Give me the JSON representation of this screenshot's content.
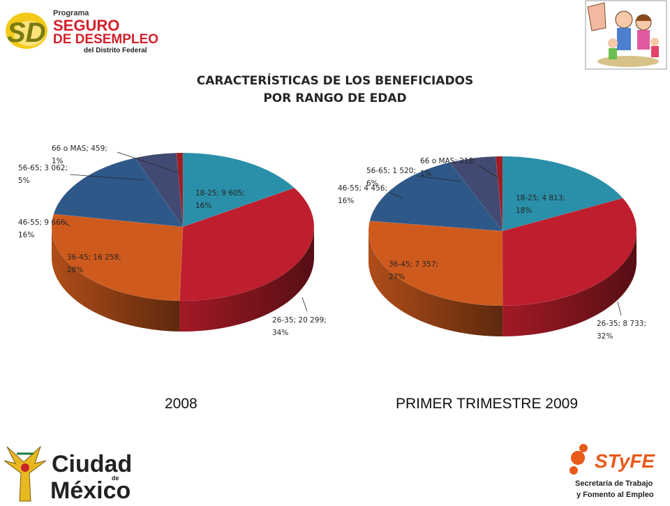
{
  "logos": {
    "program_small": "Programa",
    "program_line1": "SEGURO",
    "program_line2": "DE DESEMPLEO",
    "program_line3": "del Distrito Federal",
    "program_mark": "SD",
    "city_line1": "Ciudad",
    "city_de": "de",
    "city_line2": "México",
    "styfe_mark": "STyFE",
    "styfe_line1": "Secretaría de Trabajo",
    "styfe_line2": "y Fomento al Empleo"
  },
  "title_line1": "CARACTERÍSTICAS DE LOS BENEFICIADOS",
  "title_line2": "POR RANGO DE EDAD",
  "captions": {
    "left": "2008",
    "right": "PRIMER TRIMESTRE 2009"
  },
  "colors": {
    "18-25": "#2a8fa8",
    "26-35": "#be1e2d",
    "36-45": "#cf5a1d",
    "46-55": "#2d5888",
    "56-65": "#414a72",
    "66 o MAS": "#a11d22"
  },
  "chart_data": [
    {
      "type": "pie",
      "caption": "2008",
      "categories": [
        "18-25",
        "26-35",
        "36-45",
        "46-55",
        "56-65",
        "66 o MAS"
      ],
      "values": [
        9605,
        20299,
        16258,
        9666,
        3062,
        459
      ],
      "value_labels": [
        "9 605",
        "20 299",
        "16 258",
        "9 666",
        "3 062",
        "459"
      ],
      "percents": [
        "16%",
        "34%",
        "28%",
        "16%",
        "5%",
        "1%"
      ]
    },
    {
      "type": "pie",
      "caption": "PRIMER TRIMESTRE 2009",
      "categories": [
        "18-25",
        "26-35",
        "36-45",
        "46-55",
        "56-65",
        "66 o MAS"
      ],
      "values": [
        4813,
        8733,
        7357,
        4456,
        1520,
        218
      ],
      "value_labels": [
        "4 813",
        "8 733",
        "7 357",
        "4 456",
        "1 520",
        "218"
      ],
      "percents": [
        "18%",
        "32%",
        "27%",
        "16%",
        "6%",
        "1%"
      ]
    }
  ]
}
